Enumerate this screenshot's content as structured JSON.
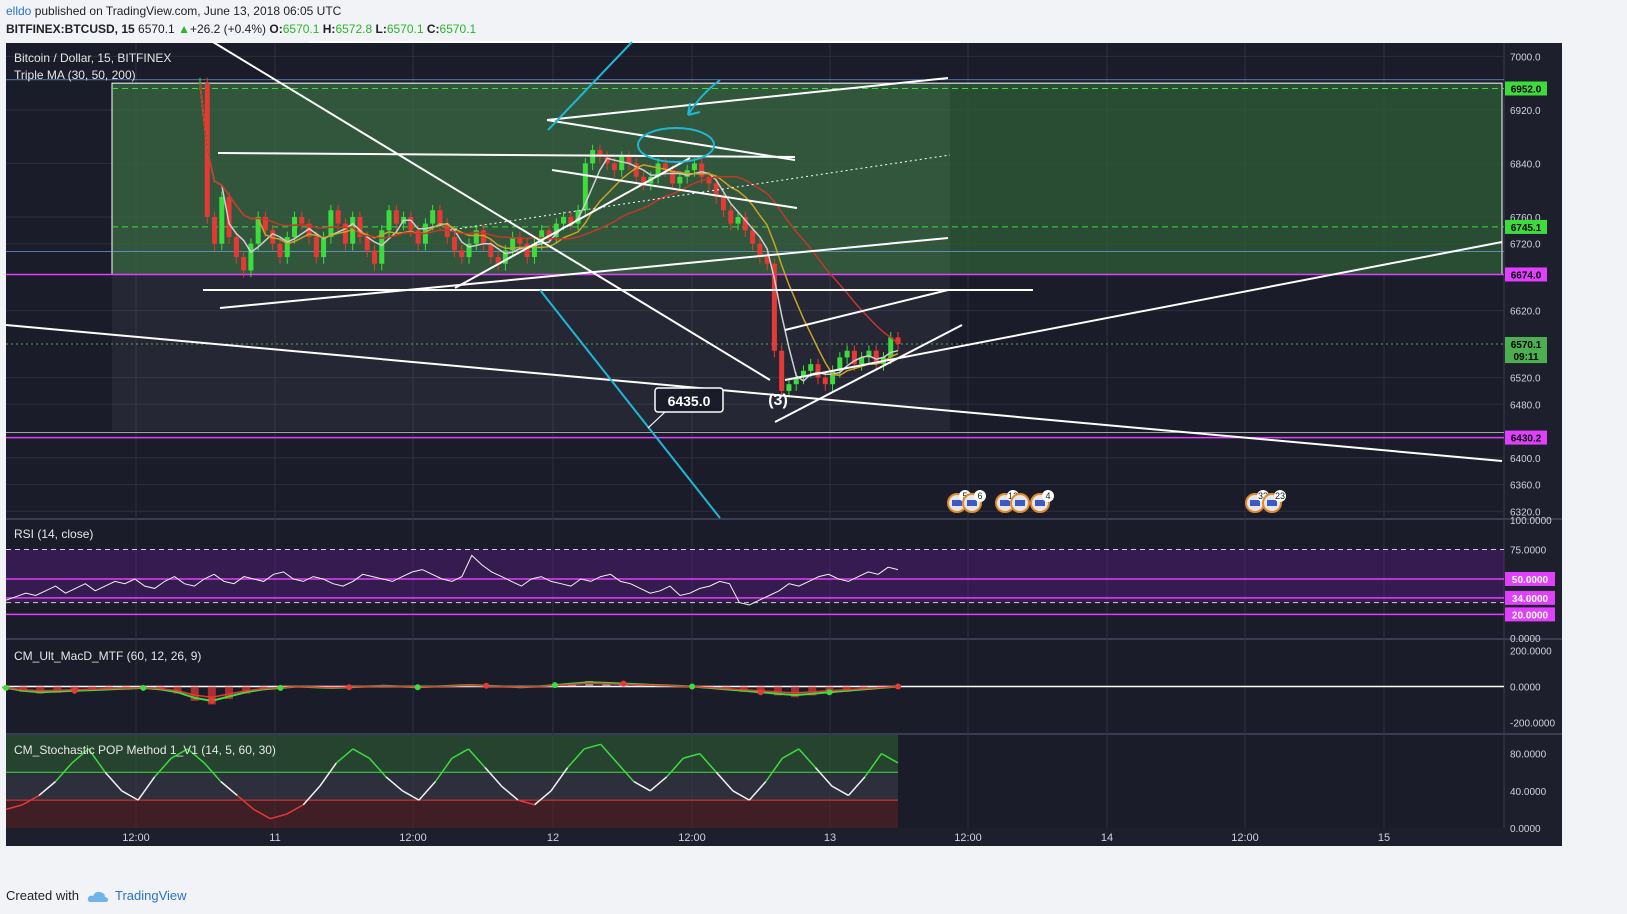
{
  "header": {
    "author": "elldo",
    "published": "published on TradingView.com, June 13, 2018 06:05 UTC",
    "symbol": "BITFINEX:BTCUSD, 15",
    "last": "6570.1",
    "change": "+26.2 (+0.4%)",
    "o_label": "O:",
    "o": "6570.1",
    "h_label": "H:",
    "h": "6572.8",
    "l_label": "L:",
    "l": "6570.1",
    "c_label": "C:",
    "c": "6570.1"
  },
  "footer": {
    "created": "Created with",
    "brand": "TradingView"
  },
  "colors": {
    "background": "#1b1c2a",
    "grid": "#2c2e40",
    "up": "#3ddc3d",
    "down": "#e53935",
    "magenta": "#e040fb",
    "green_zone": "#2e5d36",
    "cyan": "#1fb7d4",
    "ma30": "#cfcfcf",
    "ma50": "#c9a227",
    "ma200": "#c0392b"
  },
  "chart_data": [
    {
      "type": "line",
      "panel": "price",
      "title": "Bitcoin / Dollar, 15, BITFINEX",
      "indicator": "Triple MA (30, 50, 200)",
      "y_ticks": [
        "7000.0",
        "6920.0",
        "6840.0",
        "6760.0",
        "6720.0",
        "6620.0",
        "6520.0",
        "6480.0",
        "6400.0",
        "6360.0",
        "6320.0"
      ],
      "ylim": [
        6310,
        7020
      ],
      "x_ticks": [
        "12:00",
        "11",
        "12:00",
        "12",
        "12:00",
        "13",
        "12:00",
        "14",
        "12:00",
        "15"
      ],
      "price_tags": [
        {
          "label": "6952.0",
          "value": 6952,
          "color": "#3ddc3d"
        },
        {
          "label": "6745.1",
          "value": 6745.1,
          "color": "#3ddc3d"
        },
        {
          "label": "6674.0",
          "value": 6674,
          "color": "#e040fb"
        },
        {
          "label": "6570.1",
          "value": 6570.1,
          "color": "#4caf50"
        },
        {
          "label": "09:11",
          "value": 6552,
          "color": "#4caf50"
        },
        {
          "label": "6430.2",
          "value": 6430.2,
          "color": "#e040fb"
        }
      ],
      "annotations": [
        {
          "label": "6435.0",
          "value": 6435
        },
        {
          "label": "(3)"
        }
      ],
      "event_badges": [
        "5",
        "6",
        "12",
        "4",
        "33",
        "23"
      ],
      "ohlc_close_series": [
        6960,
        6760,
        6720,
        6790,
        6730,
        6700,
        6680,
        6720,
        6760,
        6740,
        6720,
        6700,
        6730,
        6760,
        6750,
        6730,
        6700,
        6730,
        6770,
        6750,
        6720,
        6760,
        6730,
        6710,
        6690,
        6740,
        6770,
        6750,
        6760,
        6740,
        6720,
        6750,
        6770,
        6750,
        6730,
        6710,
        6700,
        6720,
        6740,
        6720,
        6700,
        6690,
        6710,
        6730,
        6720,
        6700,
        6720,
        6740,
        6730,
        6750,
        6760,
        6750,
        6770,
        6840,
        6860,
        6850,
        6840,
        6830,
        6850,
        6840,
        6820,
        6810,
        6820,
        6840,
        6830,
        6810,
        6820,
        6830,
        6840,
        6820,
        6810,
        6790,
        6770,
        6750,
        6760,
        6740,
        6720,
        6700,
        6690,
        6560,
        6500,
        6510,
        6520,
        6530,
        6540,
        6520,
        6510,
        6530,
        6550,
        6560,
        6540,
        6550,
        6560,
        6540,
        6550,
        6580,
        6570
      ]
    },
    {
      "type": "line",
      "panel": "rsi",
      "title": "RSI (14, close)",
      "y_ticks": [
        "100.0000",
        "75.0000",
        "50.0000",
        "34.0000",
        "20.0000",
        "0.0000"
      ],
      "ylim": [
        0,
        100
      ],
      "levels": [
        75,
        50,
        34,
        30,
        20
      ],
      "values": [
        32,
        35,
        38,
        36,
        40,
        44,
        38,
        42,
        46,
        40,
        44,
        48,
        46,
        50,
        44,
        42,
        48,
        52,
        46,
        44,
        50,
        54,
        48,
        46,
        52,
        50,
        48,
        54,
        56,
        50,
        48,
        52,
        50,
        46,
        44,
        48,
        54,
        52,
        50,
        48,
        52,
        56,
        58,
        54,
        50,
        48,
        52,
        70,
        62,
        56,
        52,
        48,
        44,
        50,
        52,
        48,
        46,
        44,
        50,
        48,
        52,
        54,
        48,
        46,
        42,
        38,
        40,
        44,
        36,
        38,
        42,
        44,
        48,
        46,
        30,
        28,
        32,
        36,
        40,
        46,
        44,
        48,
        52,
        54,
        50,
        48,
        52,
        56,
        54,
        60,
        58
      ]
    },
    {
      "type": "line",
      "panel": "macd",
      "title": "CM_Ult_MacD_MTF (60, 12, 26, 9)",
      "y_ticks": [
        "200.0000",
        "0.0000",
        "-200.0000"
      ],
      "ylim": [
        -260,
        260
      ],
      "values": [
        -10,
        -30,
        -40,
        -35,
        -30,
        -25,
        -20,
        -15,
        -10,
        -20,
        -40,
        -80,
        -100,
        -70,
        -40,
        -20,
        -10,
        0,
        -5,
        -10,
        -5,
        0,
        5,
        0,
        -5,
        0,
        5,
        10,
        5,
        0,
        -5,
        0,
        10,
        20,
        30,
        25,
        20,
        15,
        10,
        5,
        0,
        -10,
        -20,
        -30,
        -40,
        -50,
        -60,
        -50,
        -40,
        -30,
        -20,
        -10,
        0
      ]
    },
    {
      "type": "line",
      "panel": "stochastic",
      "title": "CM_Stochastic POP Method 1_V1 (14, 5, 60, 30)",
      "y_ticks": [
        "80.0000",
        "40.0000",
        "0.0000"
      ],
      "ylim": [
        0,
        100
      ],
      "levels": [
        60,
        30
      ],
      "values": [
        20,
        25,
        35,
        50,
        70,
        85,
        60,
        40,
        30,
        55,
        75,
        85,
        70,
        50,
        35,
        20,
        10,
        15,
        25,
        45,
        70,
        85,
        75,
        55,
        40,
        30,
        50,
        75,
        85,
        65,
        45,
        30,
        25,
        40,
        65,
        85,
        90,
        70,
        50,
        40,
        55,
        75,
        80,
        60,
        40,
        30,
        50,
        75,
        85,
        65,
        45,
        35,
        55,
        80,
        70
      ]
    }
  ]
}
